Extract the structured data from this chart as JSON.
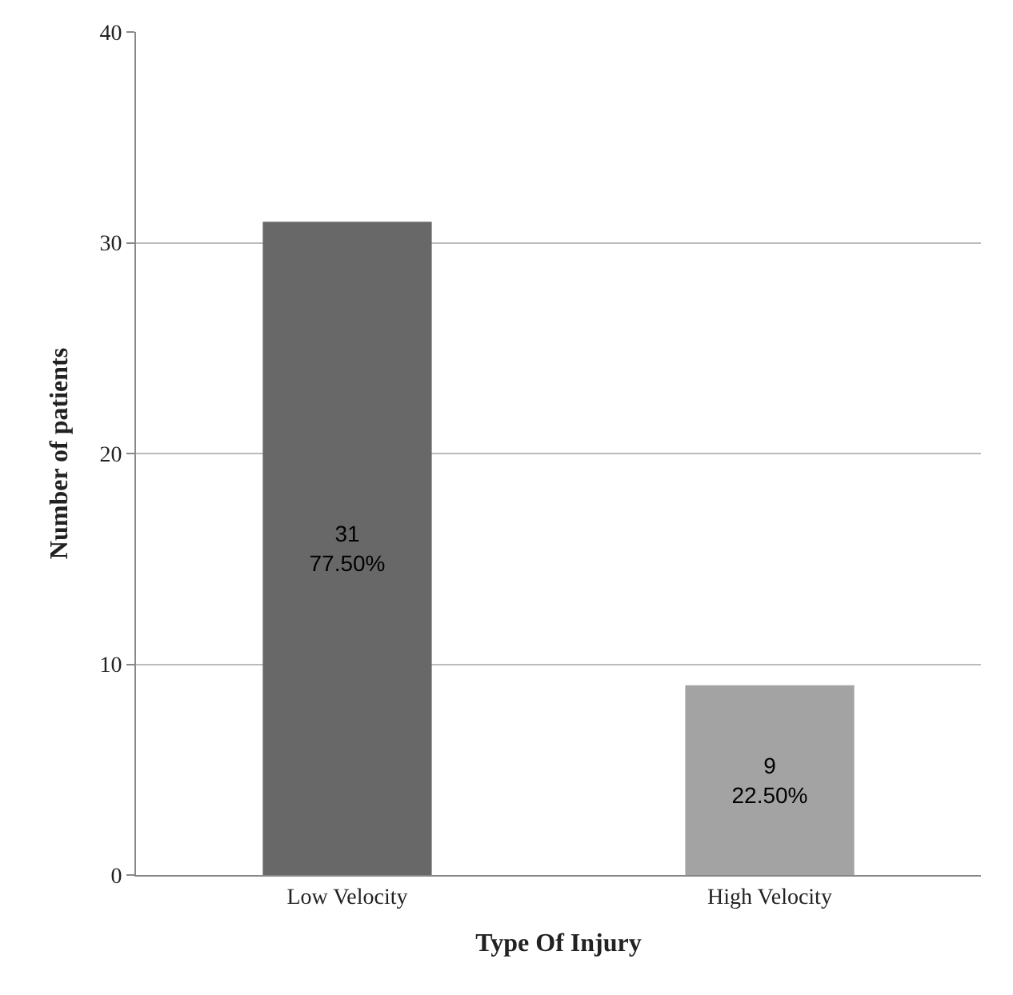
{
  "chart_data": {
    "type": "bar",
    "xlabel": "Type Of Injury",
    "ylabel": "Number of patients",
    "categories": [
      "Low Velocity",
      "High Velocity"
    ],
    "values": [
      31,
      9
    ],
    "colors": [
      "#686868",
      "#a3a3a3"
    ],
    "value_labels": [
      "31\n77.50%",
      "9\n22.50%"
    ],
    "ylim": [
      0,
      40
    ],
    "yticks": [
      0,
      10,
      20,
      30,
      40
    ],
    "grid": "y"
  }
}
